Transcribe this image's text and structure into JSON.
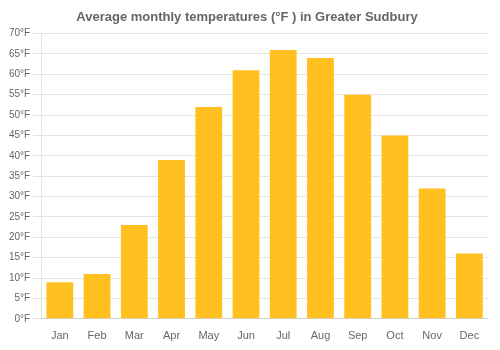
{
  "chart_data": {
    "type": "bar",
    "title": "Average monthly temperatures (°F ) in Greater Sudbury",
    "categories": [
      "Jan",
      "Feb",
      "Mar",
      "Apr",
      "May",
      "Jun",
      "Jul",
      "Aug",
      "Sep",
      "Oct",
      "Nov",
      "Dec"
    ],
    "values": [
      9,
      11,
      23,
      39,
      52,
      61,
      66,
      64,
      55,
      45,
      32,
      16
    ],
    "color": "#FFC020",
    "ylim": [
      0,
      70
    ],
    "yticks": [
      {
        "value": 0,
        "label": "0°F"
      },
      {
        "value": 5,
        "label": "5°F"
      },
      {
        "value": 10,
        "label": "10°F"
      },
      {
        "value": 15,
        "label": "15°F"
      },
      {
        "value": 20,
        "label": "20°F"
      },
      {
        "value": 25,
        "label": "25°F"
      },
      {
        "value": 30,
        "label": "30°F"
      },
      {
        "value": 35,
        "label": "35°F"
      },
      {
        "value": 40,
        "label": "40°F"
      },
      {
        "value": 45,
        "label": "45°F"
      },
      {
        "value": 50,
        "label": "50°F"
      },
      {
        "value": 55,
        "label": "55°F"
      },
      {
        "value": 60,
        "label": "60°F"
      },
      {
        "value": 65,
        "label": "65°F"
      },
      {
        "value": 70,
        "label": "70°F"
      }
    ],
    "grid": true
  }
}
